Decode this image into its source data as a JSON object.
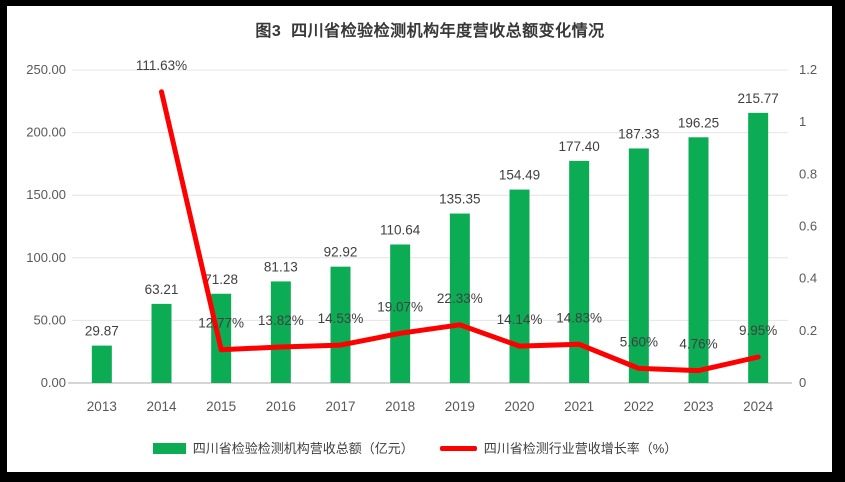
{
  "title": "图3  四川省检验检测机构年度营收总额变化情况",
  "chart_data": {
    "type": "combo-bar-line",
    "categories": [
      "2013",
      "2014",
      "2015",
      "2016",
      "2017",
      "2018",
      "2019",
      "2020",
      "2021",
      "2022",
      "2023",
      "2024"
    ],
    "series": [
      {
        "name": "四川省检验检测机构营收总额（亿元）",
        "type": "bar",
        "axis": "left",
        "color": "#0cac55",
        "values": [
          29.87,
          63.21,
          71.28,
          81.13,
          92.92,
          110.64,
          135.35,
          154.49,
          177.4,
          187.33,
          196.25,
          215.77
        ],
        "labels": [
          "29.87",
          "63.21",
          "71.28",
          "81.13",
          "92.92",
          "110.64",
          "135.35",
          "154.49",
          "177.40",
          "187.33",
          "196.25",
          "215.77"
        ]
      },
      {
        "name": "四川省检测行业营收增长率（%）",
        "type": "line",
        "axis": "right",
        "values_percent": [
          null,
          111.63,
          12.77,
          13.82,
          14.53,
          19.07,
          22.33,
          14.14,
          14.83,
          5.6,
          4.76,
          9.95
        ],
        "values": [
          null,
          1.1163,
          0.1277,
          0.1382,
          0.1453,
          0.1907,
          0.2233,
          0.1414,
          0.1483,
          0.056,
          0.0476,
          0.0995
        ],
        "color": "#fe0000",
        "labels": [
          null,
          "111.63%",
          "12.77%",
          "13.82%",
          "14.53%",
          "19.07%",
          "22.33%",
          "14.14%",
          "14.83%",
          "5.60%",
          "4.76%",
          "9.95%"
        ]
      }
    ],
    "left_axis": {
      "min": 0,
      "max": 250,
      "step": 50,
      "tick_labels": [
        "0.00",
        "50.00",
        "100.00",
        "150.00",
        "200.00",
        "250.00"
      ]
    },
    "right_axis": {
      "min": 0,
      "max": 1.2,
      "step": 0.2,
      "tick_labels": [
        "0",
        "0.2",
        "0.4",
        "0.6",
        "0.8",
        "1",
        "1.2"
      ]
    },
    "grid": true,
    "legend_position": "bottom"
  },
  "legend": {
    "items": [
      {
        "label": "四川省检验检测机构营收总额（亿元）",
        "swatch": "bar",
        "color": "#0cac55"
      },
      {
        "label": "四川省检测行业营收增长率（%）",
        "swatch": "line",
        "color": "#fe0000"
      }
    ]
  },
  "colors": {
    "bar": "#0cac55",
    "line": "#fe0000",
    "grid": "#e4e4e4",
    "axis_line": "#d6d6d6",
    "tick_text": "#595959",
    "label_text": "#404040",
    "title_text": "#383838",
    "frame": "#000000",
    "background": "#ffffff"
  }
}
